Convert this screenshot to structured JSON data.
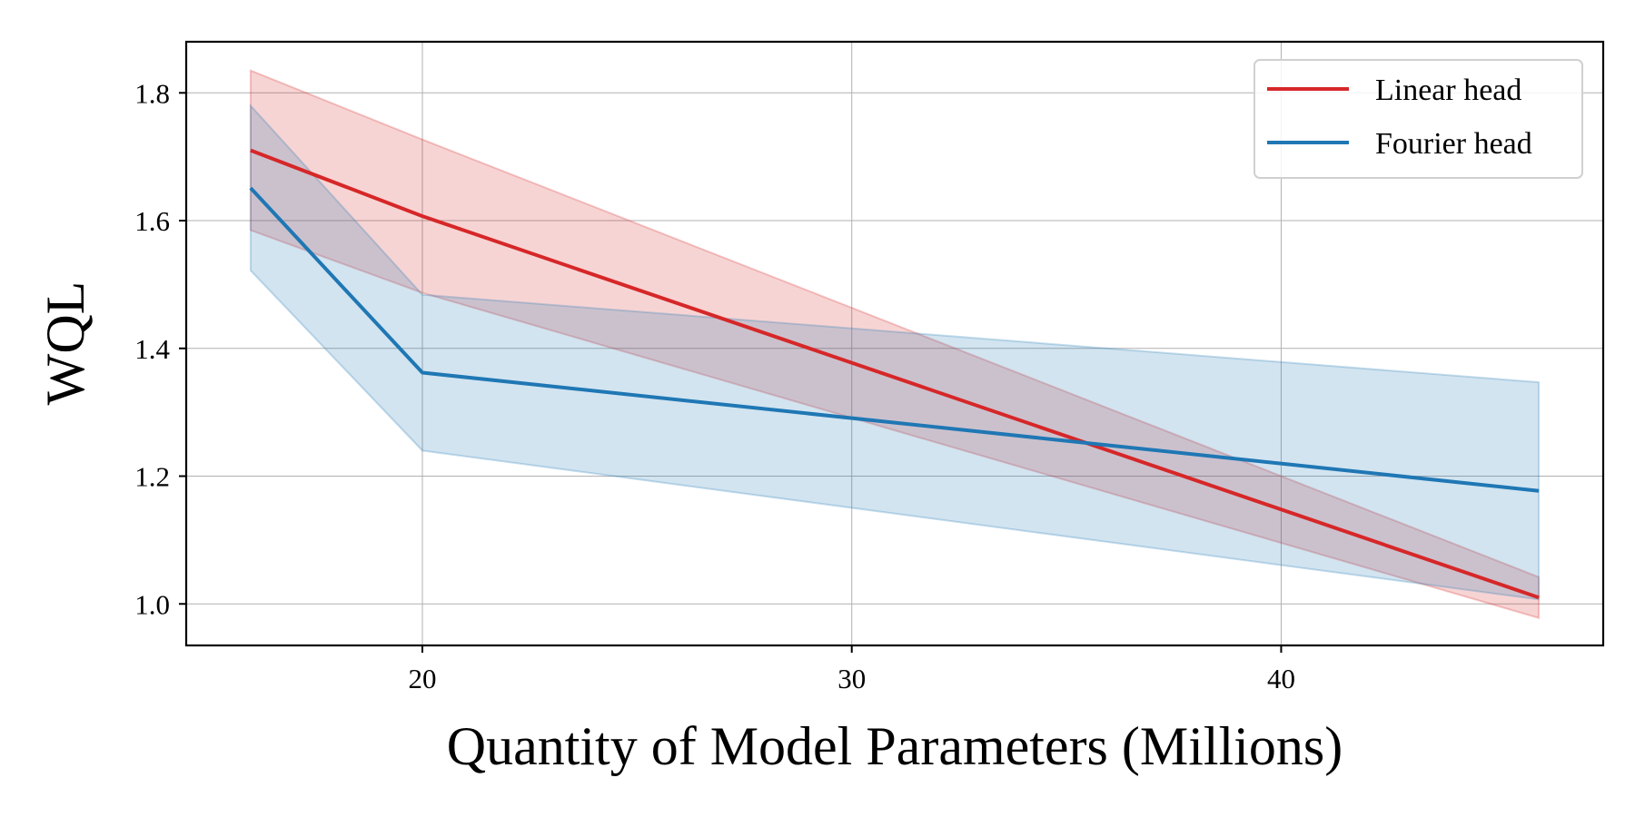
{
  "chart_data": {
    "type": "line",
    "xlabel": "Quantity of Model Parameters (Millions)",
    "ylabel": "WQL",
    "xlim": [
      14.5,
      47.5
    ],
    "ylim": [
      0.935,
      1.88
    ],
    "xticks": [
      20,
      30,
      40
    ],
    "xtick_labels": [
      "20",
      "30",
      "40"
    ],
    "yticks": [
      1.0,
      1.2,
      1.4,
      1.6,
      1.8
    ],
    "ytick_labels": [
      "1.0",
      "1.2",
      "1.4",
      "1.6",
      "1.8"
    ],
    "grid": true,
    "legend_position": "top-right",
    "series": [
      {
        "name": "Linear head",
        "color": "#d62728",
        "x": [
          16,
          20,
          46
        ],
        "values": [
          1.71,
          1.607,
          1.01
        ],
        "lower": [
          1.585,
          1.487,
          0.978
        ],
        "upper": [
          1.835,
          1.727,
          1.042
        ]
      },
      {
        "name": "Fourier head",
        "color": "#1f77b4",
        "x": [
          16,
          20,
          46
        ],
        "values": [
          1.651,
          1.362,
          1.177
        ],
        "lower": [
          1.522,
          1.24,
          1.007
        ],
        "upper": [
          1.78,
          1.484,
          1.347
        ]
      }
    ]
  }
}
